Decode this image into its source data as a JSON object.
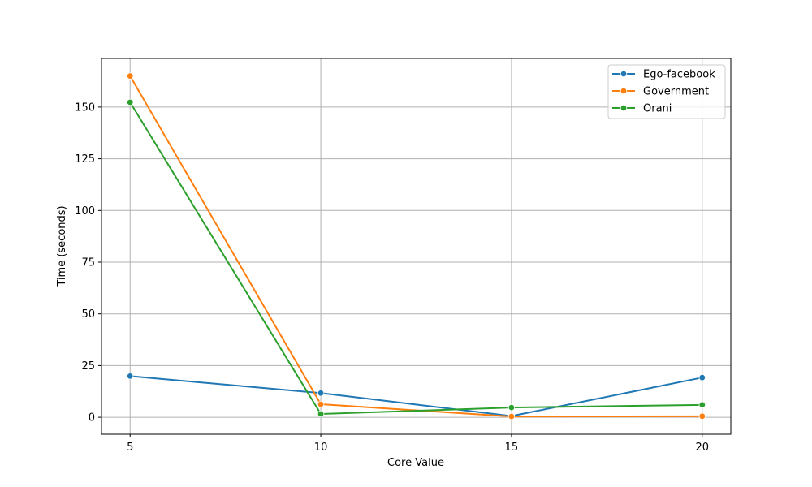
{
  "chart_data": {
    "type": "line",
    "title": "",
    "xlabel": "Core Value",
    "ylabel": "Time (seconds)",
    "x": [
      5,
      10,
      15,
      20
    ],
    "xticks": [
      5,
      10,
      15,
      20
    ],
    "yticks": [
      0,
      25,
      50,
      75,
      100,
      125,
      150
    ],
    "xlim": [
      4.25,
      20.75
    ],
    "ylim": [
      -8.2,
      173.5
    ],
    "grid": true,
    "legend_position": "top-right",
    "marker": "circle",
    "series": [
      {
        "name": "Ego-facebook",
        "color": "#1f77b4",
        "values": [
          19.9,
          11.7,
          0.6,
          19.2
        ]
      },
      {
        "name": "Government",
        "color": "#ff7f0e",
        "values": [
          165.0,
          6.3,
          0.4,
          0.5
        ]
      },
      {
        "name": "Orani",
        "color": "#2ca02c",
        "values": [
          152.3,
          1.6,
          4.7,
          6.0
        ]
      }
    ]
  }
}
